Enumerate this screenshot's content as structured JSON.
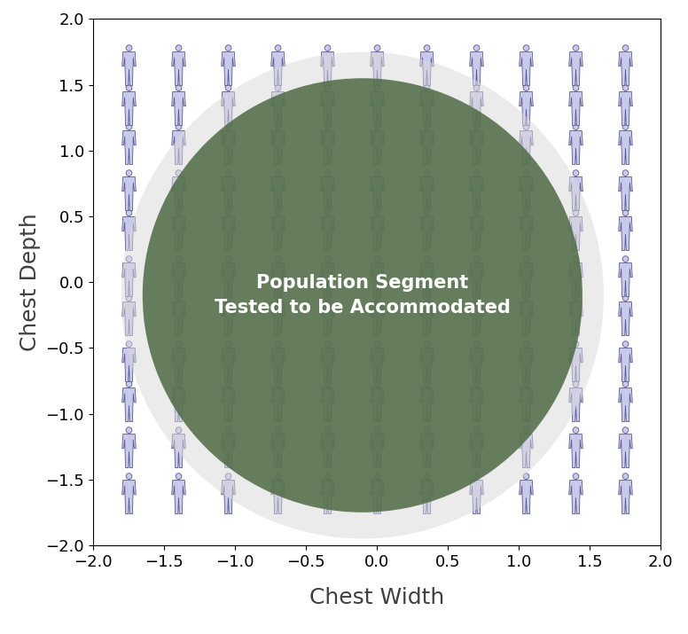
{
  "chart_data": {
    "type": "scatter",
    "xlabel": "Chest Width",
    "ylabel": "Chest Depth",
    "marker": "person",
    "x": [
      -1.75,
      -1.4,
      -1.05,
      -0.7,
      -0.35,
      0.0,
      0.35,
      0.7,
      1.05,
      1.4,
      1.75
    ],
    "y": [
      -1.6,
      -1.25,
      -0.9,
      -0.6,
      -0.25,
      0.05,
      0.4,
      0.7,
      1.05,
      1.35,
      1.65
    ],
    "color": "#c9c9ec",
    "regions": [
      {
        "center": [
          -0.1,
          -0.1
        ],
        "width": 3.4,
        "height": 3.7,
        "color": "#d9d9d9"
      },
      {
        "center": [
          -0.1,
          -0.1
        ],
        "width": 3.1,
        "height": 3.3,
        "color": "#4e6a44",
        "label": "Population Segment\nTested to be Accommodated"
      }
    ],
    "xlim": [
      -2.0,
      2.0
    ],
    "ylim": [
      -2.0,
      2.0
    ],
    "xticks": [
      {
        "value": -2.0,
        "label": "−2.0"
      },
      {
        "value": -1.5,
        "label": "−1.5"
      },
      {
        "value": -1.0,
        "label": "−1.0"
      },
      {
        "value": -0.5,
        "label": "−0.5"
      },
      0.0,
      0.5,
      1.0,
      1.5,
      2.0
    ],
    "yticks": [
      {
        "value": -2.0,
        "label": "−2.0"
      },
      {
        "value": -1.5,
        "label": "−1.5"
      },
      {
        "value": -1.0,
        "label": "−1.0"
      },
      {
        "value": -0.5,
        "label": "−0.5"
      },
      0.0,
      0.5,
      1.0,
      1.5,
      2.0
    ],
    "grid": false
  }
}
